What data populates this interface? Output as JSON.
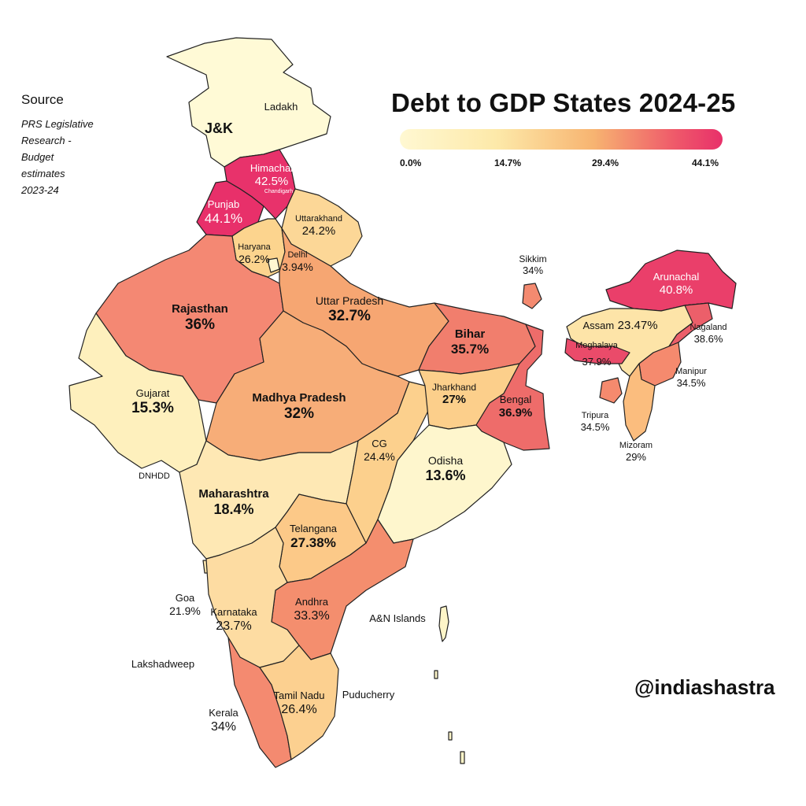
{
  "title": "Debt to GDP States 2024-25",
  "source": {
    "heading": "Source",
    "lines": [
      "PRS Legislative",
      "Research -",
      "Budget",
      "estimates",
      "2023-24"
    ]
  },
  "handle": "@indiashastra",
  "legend": {
    "ticks": [
      "0.0%",
      "14.7%",
      "29.4%",
      "44.1%"
    ],
    "colors": [
      "#fff8d2",
      "#fde9a9",
      "#f7b471",
      "#ef5a6a",
      "#e8306a"
    ]
  },
  "regions": [
    {
      "name": "Ladakh",
      "value": ""
    },
    {
      "name": "J&K",
      "value": ""
    },
    {
      "name": "Himachal",
      "value": "42.5%"
    },
    {
      "name": "Chandigarh",
      "value": ""
    },
    {
      "name": "Punjab",
      "value": "44.1%"
    },
    {
      "name": "Uttarakhand",
      "value": "24.2%"
    },
    {
      "name": "Haryana",
      "value": "26.2%"
    },
    {
      "name": "Delhi",
      "value": "3.94%"
    },
    {
      "name": "Rajasthan",
      "value": "36%"
    },
    {
      "name": "Uttar Pradesh",
      "value": "32.7%"
    },
    {
      "name": "Bihar",
      "value": "35.7%"
    },
    {
      "name": "Sikkim",
      "value": "34%"
    },
    {
      "name": "Arunachal",
      "value": "40.8%"
    },
    {
      "name": "Assam",
      "value": "23.47%"
    },
    {
      "name": "Nagaland",
      "value": "38.6%"
    },
    {
      "name": "Meghalaya",
      "value": "37.9%"
    },
    {
      "name": "Manipur",
      "value": "34.5%"
    },
    {
      "name": "Tripura",
      "value": "34.5%"
    },
    {
      "name": "Mizoram",
      "value": "29%"
    },
    {
      "name": "Gujarat",
      "value": "15.3%"
    },
    {
      "name": "Madhya Pradesh",
      "value": "32%"
    },
    {
      "name": "Jharkhand",
      "value": "27%"
    },
    {
      "name": "Bengal",
      "value": "36.9%"
    },
    {
      "name": "CG",
      "value": "24.4%"
    },
    {
      "name": "Odisha",
      "value": "13.6%"
    },
    {
      "name": "DNHDD",
      "value": ""
    },
    {
      "name": "Maharashtra",
      "value": "18.4%"
    },
    {
      "name": "Telangana",
      "value": "27.38%"
    },
    {
      "name": "Goa",
      "value": "21.9%"
    },
    {
      "name": "Karnataka",
      "value": "23.7%"
    },
    {
      "name": "Andhra",
      "value": "33.3%"
    },
    {
      "name": "A&N Islands",
      "value": ""
    },
    {
      "name": "Lakshadweep",
      "value": ""
    },
    {
      "name": "Puducherry",
      "value": ""
    },
    {
      "name": "Tamil Nadu",
      "value": "26.4%"
    },
    {
      "name": "Kerala",
      "value": "34%"
    }
  ]
}
